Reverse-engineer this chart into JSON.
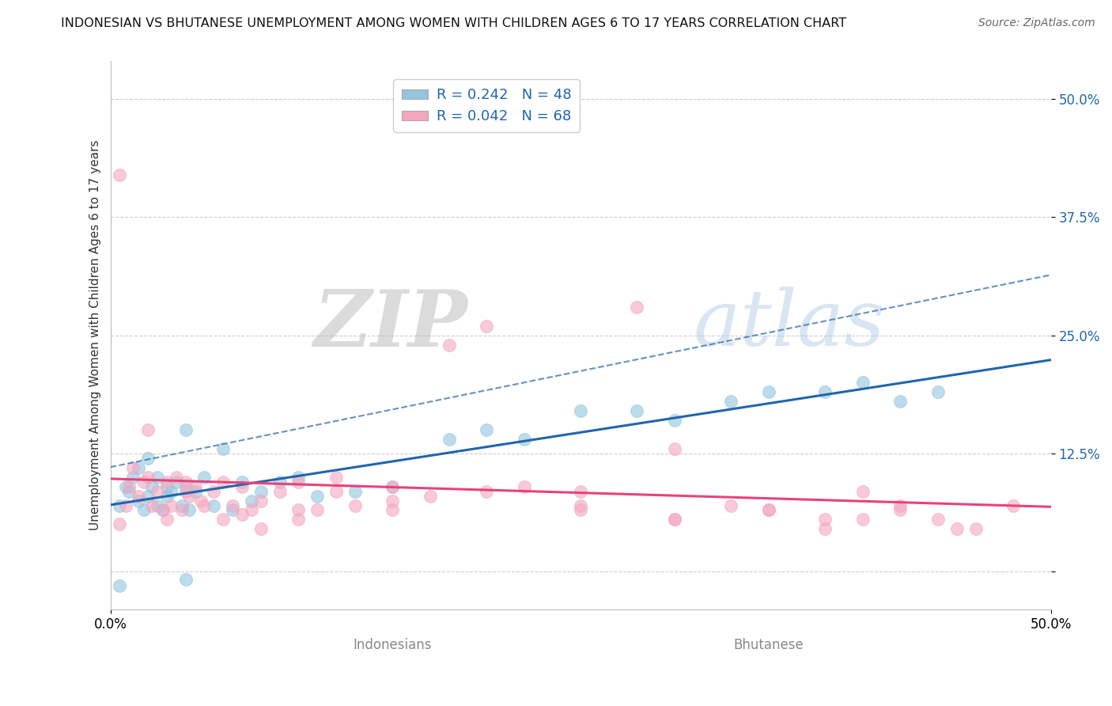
{
  "title": "INDONESIAN VS BHUTANESE UNEMPLOYMENT AMONG WOMEN WITH CHILDREN AGES 6 TO 17 YEARS CORRELATION CHART",
  "source": "Source: ZipAtlas.com",
  "ylabel": "Unemployment Among Women with Children Ages 6 to 17 years",
  "xlim": [
    0.0,
    0.5
  ],
  "ylim": [
    -0.04,
    0.54
  ],
  "yticks": [
    0.0,
    0.125,
    0.25,
    0.375,
    0.5
  ],
  "ytick_labels": [
    "",
    "12.5%",
    "25.0%",
    "37.5%",
    "50.0%"
  ],
  "xtick_labels": [
    "0.0%",
    "50.0%"
  ],
  "color_indonesian": "#92c5de",
  "color_bhutanese": "#f4a6bf",
  "color_line_indonesian": "#2166ac",
  "color_line_bhutanese": "#e8427a",
  "watermark_zip": "ZIP",
  "watermark_atlas": "atlas",
  "bg_color": "#ffffff",
  "grid_color": "#c8c8c8",
  "title_fontsize": 11.5,
  "source_fontsize": 10,
  "axis_label_fontsize": 11,
  "tick_fontsize": 12,
  "legend_fontsize": 13,
  "xlabel_indonesians": "Indonesians",
  "xlabel_bhutanese": "Bhutanese",
  "legend_label1": "R = 0.242   N = 48",
  "legend_label2": "R = 0.042   N = 68"
}
